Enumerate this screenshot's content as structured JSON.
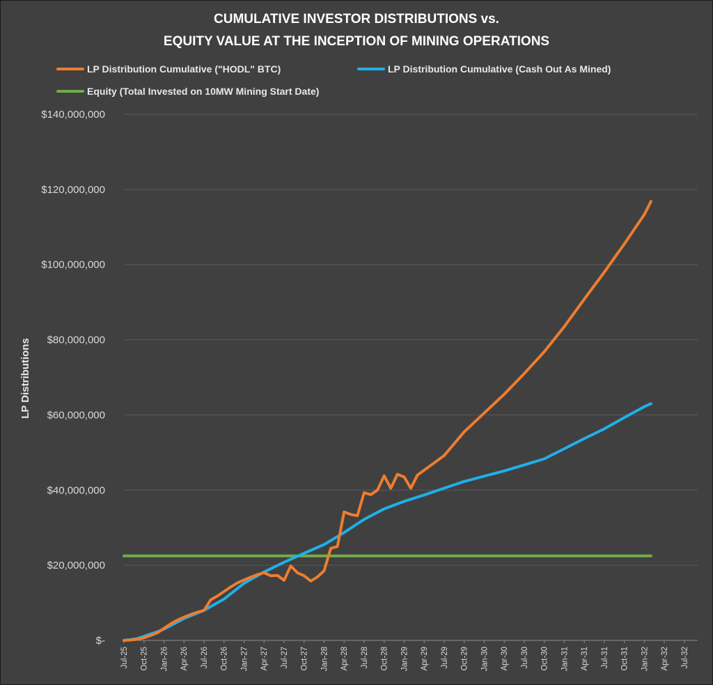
{
  "chart_data": {
    "type": "line",
    "title_line1": "CUMULATIVE INVESTOR DISTRIBUTIONS  vs.",
    "title_line2": "EQUITY VALUE AT THE INCEPTION OF MINING OPERATIONS",
    "ylabel": "LP Distributions",
    "xlabel": "",
    "ylim": [
      0,
      140000000
    ],
    "y_ticks": [
      {
        "value": 0,
        "label": "$-"
      },
      {
        "value": 20000000,
        "label": "$20,000,000"
      },
      {
        "value": 40000000,
        "label": "$40,000,000"
      },
      {
        "value": 60000000,
        "label": "$60,000,000"
      },
      {
        "value": 80000000,
        "label": "$80,000,000"
      },
      {
        "value": 100000000,
        "label": "$100,000,000"
      },
      {
        "value": 120000000,
        "label": "$120,000,000"
      },
      {
        "value": 140000000,
        "label": "$140,000,000"
      }
    ],
    "x_range": [
      "2025-07",
      "2032-09"
    ],
    "x_ticks": [
      "Jul-25",
      "Oct-25",
      "Jan-26",
      "Apr-26",
      "Jul-26",
      "Oct-26",
      "Jan-27",
      "Apr-27",
      "Jul-27",
      "Oct-27",
      "Jan-28",
      "Apr-28",
      "Jul-28",
      "Oct-28",
      "Jan-29",
      "Apr-29",
      "Jul-29",
      "Oct-29",
      "Jan-30",
      "Apr-30",
      "Jul-30",
      "Oct-30",
      "Jan-31",
      "Apr-31",
      "Jul-31",
      "Oct-31",
      "Jan-32",
      "Apr-32",
      "Jul-32"
    ],
    "grid": true,
    "legend_position": "top",
    "series": [
      {
        "name": "LP Distribution Cumulative (\"HODL\" BTC)",
        "color": "#ed7d31",
        "points": [
          [
            "2025-07",
            0
          ],
          [
            "2025-08",
            100000
          ],
          [
            "2025-09",
            300000
          ],
          [
            "2025-10",
            700000
          ],
          [
            "2025-11",
            1300000
          ],
          [
            "2025-12",
            2000000
          ],
          [
            "2026-01",
            3200000
          ],
          [
            "2026-02",
            4400000
          ],
          [
            "2026-03",
            5400000
          ],
          [
            "2026-04",
            6200000
          ],
          [
            "2026-05",
            6900000
          ],
          [
            "2026-06",
            7500000
          ],
          [
            "2026-07",
            8000000
          ],
          [
            "2026-08",
            10800000
          ],
          [
            "2026-09",
            11800000
          ],
          [
            "2026-10",
            13000000
          ],
          [
            "2026-11",
            14200000
          ],
          [
            "2026-12",
            15300000
          ],
          [
            "2027-01",
            16100000
          ],
          [
            "2027-02",
            16800000
          ],
          [
            "2027-03",
            17500000
          ],
          [
            "2027-04",
            18000000
          ],
          [
            "2027-05",
            17200000
          ],
          [
            "2027-06",
            17300000
          ],
          [
            "2027-07",
            16000000
          ],
          [
            "2027-08",
            19800000
          ],
          [
            "2027-09",
            18000000
          ],
          [
            "2027-10",
            17200000
          ],
          [
            "2027-11",
            15800000
          ],
          [
            "2027-12",
            16900000
          ],
          [
            "2028-01",
            18500000
          ],
          [
            "2028-02",
            24500000
          ],
          [
            "2028-03",
            25000000
          ],
          [
            "2028-04",
            34200000
          ],
          [
            "2028-05",
            33500000
          ],
          [
            "2028-06",
            33200000
          ],
          [
            "2028-07",
            39300000
          ],
          [
            "2028-08",
            38800000
          ],
          [
            "2028-09",
            40000000
          ],
          [
            "2028-10",
            43800000
          ],
          [
            "2028-11",
            40500000
          ],
          [
            "2028-12",
            44200000
          ],
          [
            "2029-01",
            43500000
          ],
          [
            "2029-02",
            40500000
          ],
          [
            "2029-03",
            44000000
          ],
          [
            "2029-07",
            49200000
          ],
          [
            "2029-10",
            55500000
          ],
          [
            "2030-01",
            60500000
          ],
          [
            "2030-04",
            65500000
          ],
          [
            "2030-07",
            71000000
          ],
          [
            "2030-10",
            76800000
          ],
          [
            "2031-01",
            83500000
          ],
          [
            "2031-04",
            90800000
          ],
          [
            "2031-07",
            98000000
          ],
          [
            "2031-10",
            105500000
          ],
          [
            "2032-01",
            113300000
          ],
          [
            "2032-02",
            116800000
          ]
        ]
      },
      {
        "name": "LP Distribution Cumulative (Cash Out As Mined)",
        "color": "#1fb0e8",
        "points": [
          [
            "2025-07",
            0
          ],
          [
            "2025-08",
            200000
          ],
          [
            "2025-09",
            500000
          ],
          [
            "2025-10",
            1100000
          ],
          [
            "2025-11",
            1700000
          ],
          [
            "2025-12",
            2300000
          ],
          [
            "2026-01",
            3000000
          ],
          [
            "2026-04",
            5800000
          ],
          [
            "2026-07",
            8000000
          ],
          [
            "2026-10",
            11000000
          ],
          [
            "2027-01",
            15200000
          ],
          [
            "2027-04",
            18200000
          ],
          [
            "2027-07",
            20800000
          ],
          [
            "2027-10",
            23200000
          ],
          [
            "2028-01",
            25500000
          ],
          [
            "2028-04",
            28700000
          ],
          [
            "2028-07",
            32200000
          ],
          [
            "2028-10",
            35000000
          ],
          [
            "2029-01",
            37000000
          ],
          [
            "2029-04",
            38700000
          ],
          [
            "2029-07",
            40500000
          ],
          [
            "2029-10",
            42300000
          ],
          [
            "2030-01",
            43700000
          ],
          [
            "2030-04",
            45100000
          ],
          [
            "2030-07",
            46700000
          ],
          [
            "2030-10",
            48300000
          ],
          [
            "2031-01",
            51000000
          ],
          [
            "2031-04",
            53700000
          ],
          [
            "2031-07",
            56300000
          ],
          [
            "2031-10",
            59300000
          ],
          [
            "2032-01",
            62200000
          ],
          [
            "2032-02",
            63000000
          ]
        ]
      },
      {
        "name": "Equity (Total Invested on 10MW Mining Start Date)",
        "color": "#70ad47",
        "points": [
          [
            "2025-07",
            22500000
          ],
          [
            "2032-02",
            22500000
          ]
        ]
      }
    ]
  }
}
